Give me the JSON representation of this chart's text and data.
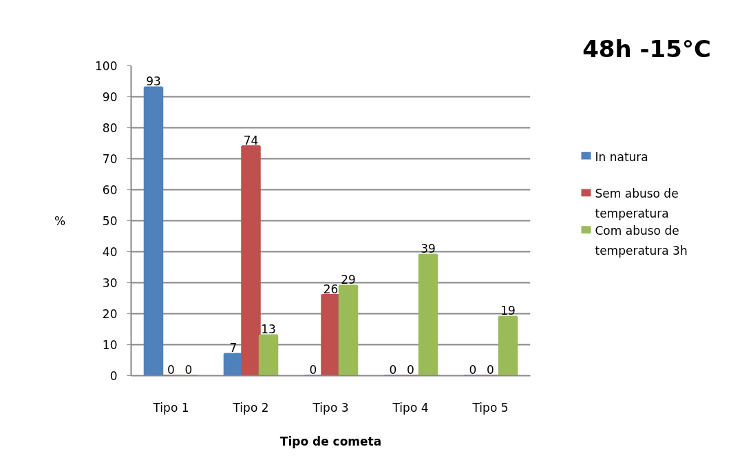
{
  "chart_data": {
    "type": "bar",
    "title": "48h -15°C",
    "xlabel": "Tipo de cometa",
    "ylabel": "%",
    "categories": [
      "Tipo 1",
      "Tipo 2",
      "Tipo 3",
      "Tipo 4",
      "Tipo 5"
    ],
    "series": [
      {
        "name": "In natura",
        "color": "#4f81bd",
        "values": [
          93,
          7,
          0,
          0,
          0
        ]
      },
      {
        "name": "Sem abuso de temperatura",
        "color": "#c0504d",
        "values": [
          0,
          74,
          26,
          0,
          0
        ]
      },
      {
        "name": "Com abuso de temperatura 3h",
        "color": "#9bbb59",
        "values": [
          0,
          13,
          29,
          39,
          19
        ]
      }
    ],
    "ylim": [
      0,
      100
    ],
    "yticks": [
      0,
      10,
      20,
      30,
      40,
      50,
      60,
      70,
      80,
      90,
      100
    ],
    "grid": "y",
    "legend": "right",
    "data_labels": true
  }
}
